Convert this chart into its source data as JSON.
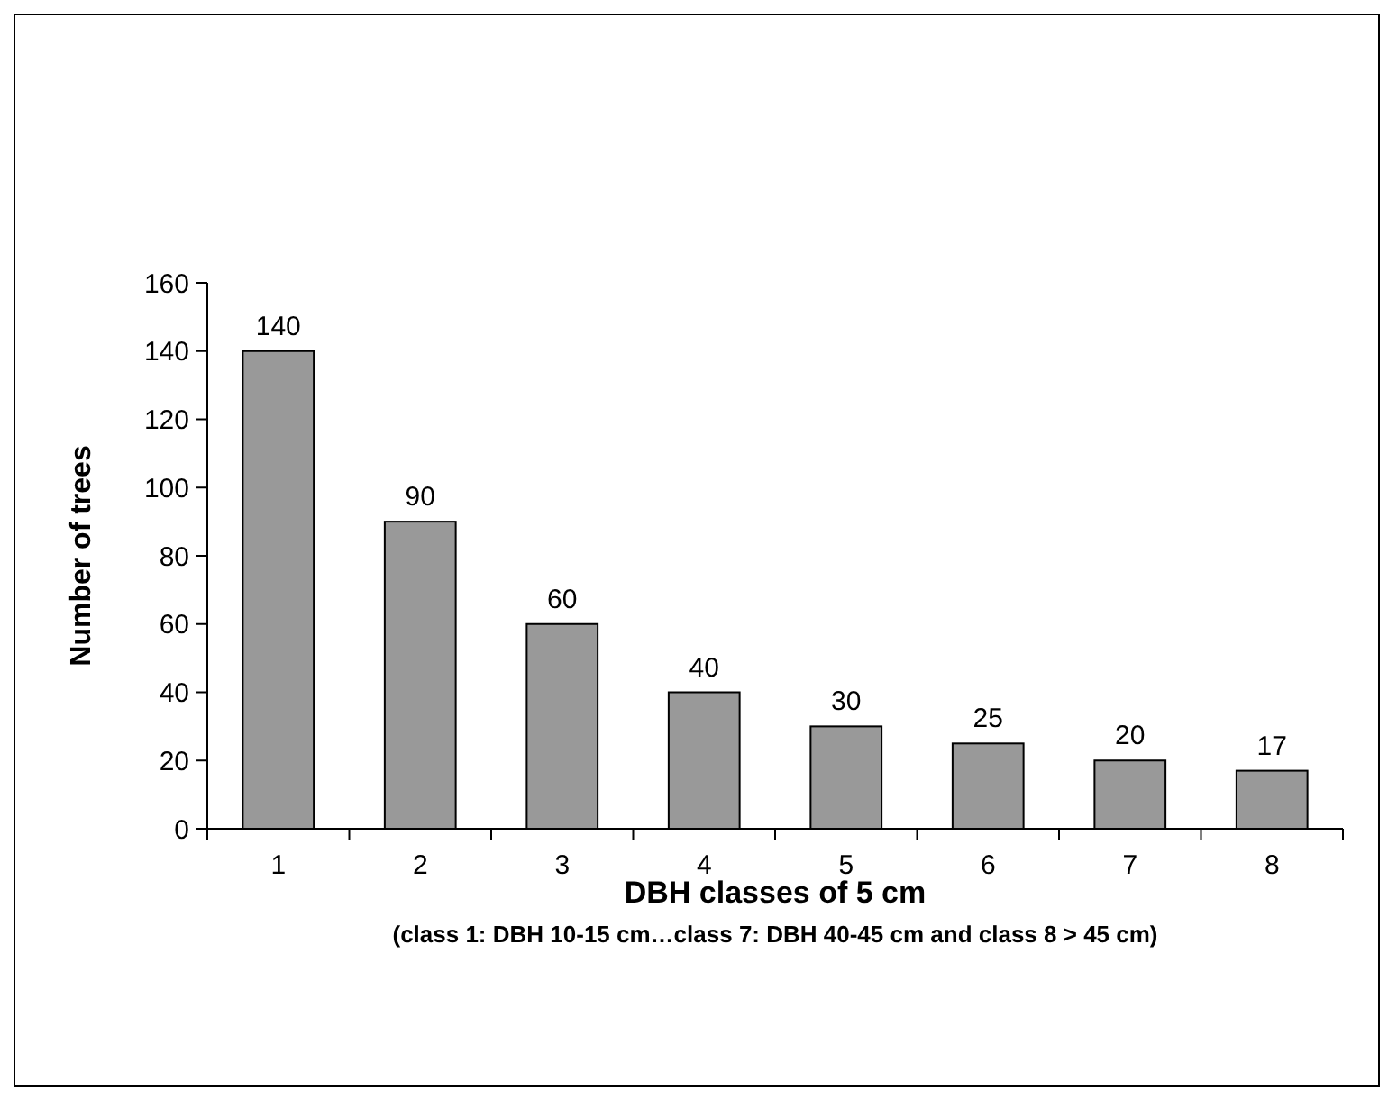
{
  "chart_data": {
    "type": "bar",
    "xlabel": "DBH classes of 5 cm",
    "ylabel": "Number of trees",
    "annotations": [
      "(class 1: DBH 10-15 cm…class 7: DBH 40-45 cm and class 8 > 45 cm)"
    ],
    "categories": [
      "1",
      "2",
      "3",
      "4",
      "5",
      "6",
      "7",
      "8"
    ],
    "values": [
      140,
      90,
      60,
      40,
      30,
      25,
      20,
      17
    ],
    "color": "#999999",
    "ylim": [
      0,
      160
    ],
    "yticks": [
      0,
      20,
      40,
      60,
      80,
      100,
      120,
      140,
      160
    ],
    "data_labels": true,
    "grid": false
  }
}
